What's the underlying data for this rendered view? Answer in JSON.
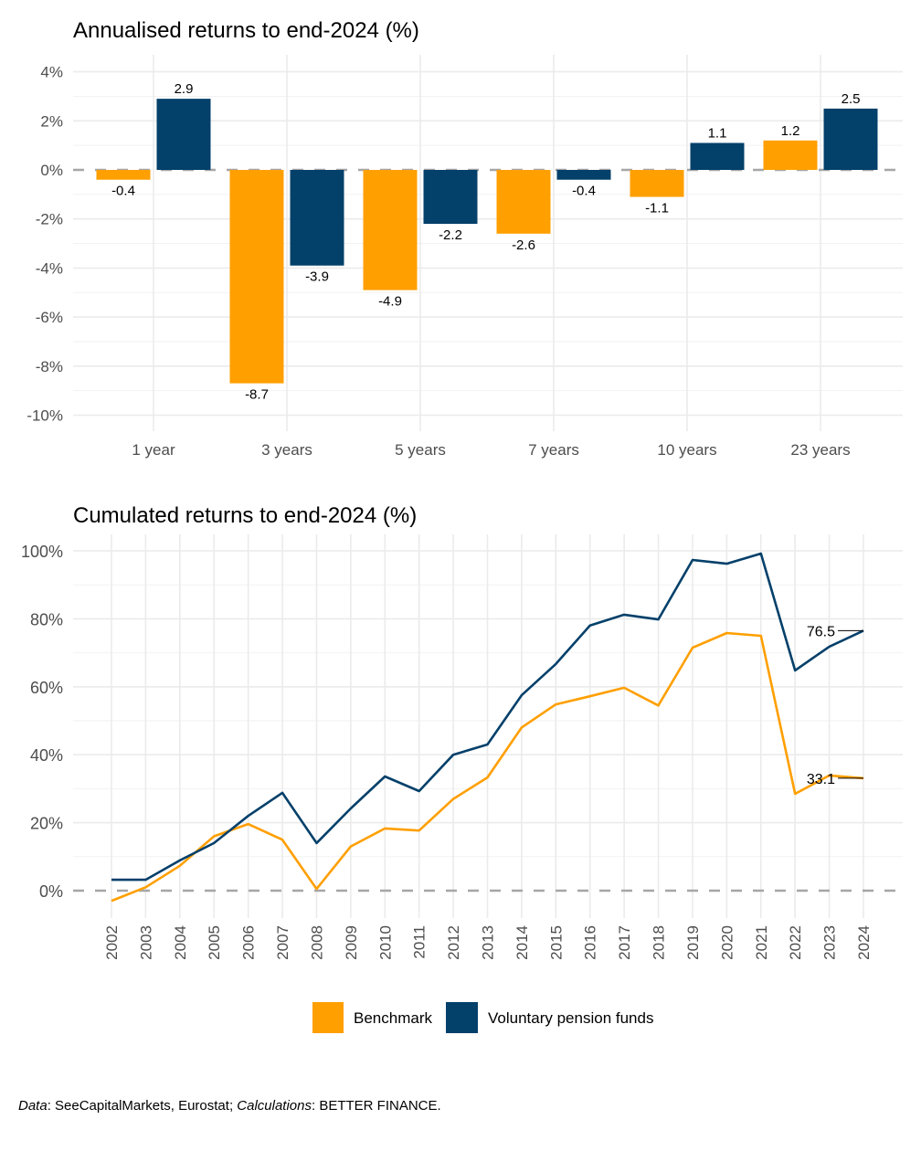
{
  "colors": {
    "benchmark": "#FF9F00",
    "pension": "#03406A"
  },
  "legend": [
    {
      "name": "Benchmark",
      "color": "#FF9F00"
    },
    {
      "name": "Voluntary pension funds",
      "color": "#03406A"
    }
  ],
  "caption": {
    "data_label": "Data",
    "data_text": ": SeeCapitalMarkets, Eurostat; ",
    "calc_label": "Calculations",
    "calc_text": ": BETTER FINANCE."
  },
  "chart_data": [
    {
      "type": "bar",
      "title": "Annualised returns to end-2024 (%)",
      "xlabel": "",
      "ylabel": "",
      "categories": [
        "1 year",
        "3 years",
        "5 years",
        "7 years",
        "10 years",
        "23 years"
      ],
      "series": [
        {
          "name": "Benchmark",
          "values": [
            -0.4,
            -8.7,
            -4.9,
            -2.6,
            -1.1,
            1.2
          ]
        },
        {
          "name": "Voluntary pension funds",
          "values": [
            2.9,
            -3.9,
            -2.2,
            -0.4,
            1.1,
            2.5
          ]
        }
      ],
      "yticks": [
        "4%",
        "2%",
        "0%",
        "-2%",
        "-4%",
        "-6%",
        "-8%",
        "-10%"
      ],
      "ytick_values": [
        4,
        2,
        0,
        -2,
        -4,
        -6,
        -8,
        -10
      ],
      "ylim": [
        -10.7,
        4.7
      ],
      "grid": true,
      "zero_line": "dashed"
    },
    {
      "type": "line",
      "title": "Cumulated returns to end-2024 (%)",
      "xlabel": "",
      "ylabel": "",
      "x": [
        "2002",
        "2003",
        "2004",
        "2005",
        "2006",
        "2007",
        "2008",
        "2009",
        "2010",
        "2011",
        "2012",
        "2013",
        "2014",
        "2015",
        "2016",
        "2017",
        "2018",
        "2019",
        "2020",
        "2021",
        "2022",
        "2023",
        "2024"
      ],
      "series": [
        {
          "name": "Benchmark",
          "values": [
            -3.0,
            1.0,
            7.3,
            16.0,
            19.6,
            15.0,
            0.5,
            13.0,
            18.3,
            17.7,
            27.0,
            33.3,
            48.0,
            54.8,
            57.2,
            59.7,
            54.5,
            71.5,
            75.8,
            75.0,
            28.5,
            33.9,
            33.1
          ],
          "end_label": "33.1"
        },
        {
          "name": "Voluntary pension funds",
          "values": [
            3.2,
            3.2,
            8.9,
            14.0,
            22.0,
            28.8,
            14.0,
            24.2,
            33.6,
            29.3,
            40.0,
            43.0,
            57.5,
            66.7,
            78.0,
            81.2,
            79.8,
            97.3,
            96.2,
            99.2,
            64.8,
            71.8,
            76.5
          ],
          "end_label": "76.5"
        }
      ],
      "yticks": [
        "100%",
        "80%",
        "60%",
        "40%",
        "20%",
        "0%"
      ],
      "ytick_values": [
        100,
        80,
        60,
        40,
        20,
        0
      ],
      "ylim": [
        -7,
        104
      ],
      "grid": true,
      "zero_line": "dashed",
      "legend": "bottom"
    }
  ]
}
